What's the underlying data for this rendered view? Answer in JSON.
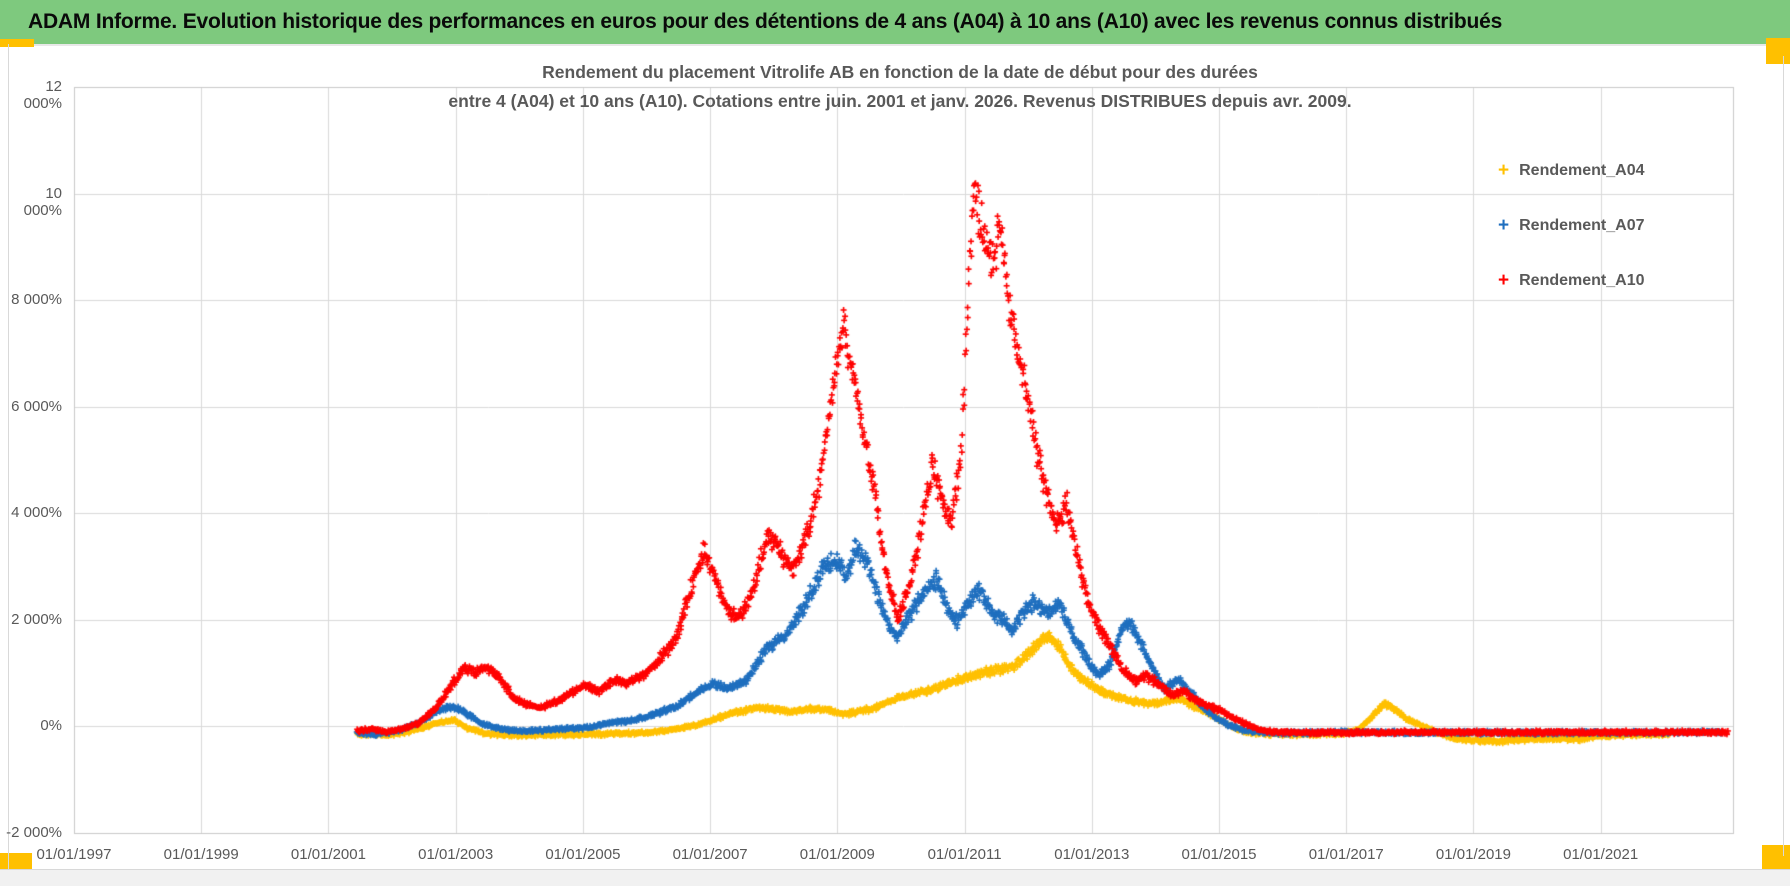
{
  "window": {
    "banner_title": "ADAM Informe. Evolution historique des performances en euros pour des détentions de 4 ans (A04) à 10 ans (A10) avec les revenus connus distribués"
  },
  "chart": {
    "title_line1": "Rendement du placement Vitrolife AB en fonction de la date de début pour des durées",
    "title_line2": "entre 4 (A04) et 10 ans (A10). Cotations entre juin. 2001 et janv. 2026. Revenus DISTRIBUES depuis avr. 2009."
  },
  "colors": {
    "banner_green": "#7ec97e",
    "accent_orange": "#ffc000",
    "gridline": "#d9d9d9",
    "plot_border": "#c9c9c9",
    "axis_text": "#595959",
    "series_a04": "#ffc000",
    "series_a07": "#1f6fbf",
    "series_a10": "#ff0000"
  },
  "chart_data": {
    "type": "scatter",
    "marker": "+",
    "title": "Rendement du placement Vitrolife AB en fonction de la date de début pour des durées entre 4 (A04) et 10 ans (A10). Cotations entre juin. 2001 et janv. 2026. Revenus DISTRIBUES depuis avr. 2009.",
    "x_axis": {
      "range_years": [
        1997.0,
        2023.08
      ],
      "tick_labels": [
        "01/01/1997",
        "01/01/1999",
        "01/01/2001",
        "01/01/2003",
        "01/01/2005",
        "01/01/2007",
        "01/01/2009",
        "01/01/2011",
        "01/01/2013",
        "01/01/2015",
        "01/01/2017",
        "01/01/2019",
        "01/01/2021"
      ],
      "tick_years": [
        1997,
        1999,
        2001,
        2003,
        2005,
        2007,
        2009,
        2011,
        2013,
        2015,
        2017,
        2019,
        2021
      ]
    },
    "y_axis": {
      "unit": "percent",
      "range": [
        -2000,
        12000
      ],
      "tick_labels": [
        "12 000%",
        "10 000%",
        "8 000%",
        "6 000%",
        "4 000%",
        "2 000%",
        "0%",
        "-2 000%"
      ],
      "tick_values": [
        12000,
        10000,
        8000,
        6000,
        4000,
        2000,
        0,
        -2000
      ],
      "grid": true
    },
    "legend_position": "right-inside",
    "series": [
      {
        "name": "Rendement_A04",
        "color": "#ffc000",
        "anchors": [
          [
            2001.45,
            -140
          ],
          [
            2001.9,
            -160
          ],
          [
            2002.3,
            -90
          ],
          [
            2002.7,
            60
          ],
          [
            2002.95,
            120
          ],
          [
            2003.2,
            -40
          ],
          [
            2003.5,
            -140
          ],
          [
            2004.0,
            -170
          ],
          [
            2004.5,
            -160
          ],
          [
            2005.0,
            -150
          ],
          [
            2005.5,
            -130
          ],
          [
            2006.0,
            -120
          ],
          [
            2006.4,
            -60
          ],
          [
            2006.8,
            30
          ],
          [
            2007.1,
            150
          ],
          [
            2007.4,
            260
          ],
          [
            2007.7,
            340
          ],
          [
            2008.0,
            330
          ],
          [
            2008.3,
            280
          ],
          [
            2008.6,
            330
          ],
          [
            2008.9,
            300
          ],
          [
            2009.1,
            230
          ],
          [
            2009.35,
            280
          ],
          [
            2009.6,
            350
          ],
          [
            2009.85,
            480
          ],
          [
            2010.1,
            580
          ],
          [
            2010.35,
            650
          ],
          [
            2010.6,
            750
          ],
          [
            2010.85,
            850
          ],
          [
            2011.1,
            950
          ],
          [
            2011.35,
            1020
          ],
          [
            2011.6,
            1080
          ],
          [
            2011.8,
            1150
          ],
          [
            2012.0,
            1350
          ],
          [
            2012.2,
            1600
          ],
          [
            2012.35,
            1680
          ],
          [
            2012.5,
            1450
          ],
          [
            2012.65,
            1150
          ],
          [
            2012.85,
            900
          ],
          [
            2013.05,
            720
          ],
          [
            2013.25,
            600
          ],
          [
            2013.5,
            520
          ],
          [
            2013.75,
            450
          ],
          [
            2014.0,
            430
          ],
          [
            2014.2,
            480
          ],
          [
            2014.4,
            520
          ],
          [
            2014.6,
            380
          ],
          [
            2014.8,
            280
          ],
          [
            2015.0,
            130
          ],
          [
            2015.2,
            0
          ],
          [
            2015.45,
            -110
          ],
          [
            2015.8,
            -150
          ],
          [
            2016.3,
            -150
          ],
          [
            2016.9,
            -140
          ],
          [
            2017.2,
            -60
          ],
          [
            2017.45,
            250
          ],
          [
            2017.6,
            430
          ],
          [
            2017.75,
            330
          ],
          [
            2017.95,
            140
          ],
          [
            2018.2,
            20
          ],
          [
            2018.45,
            -120
          ],
          [
            2018.7,
            -220
          ],
          [
            2019.0,
            -260
          ],
          [
            2019.4,
            -280
          ],
          [
            2019.8,
            -240
          ],
          [
            2020.2,
            -230
          ],
          [
            2020.6,
            -250
          ],
          [
            2021.0,
            -180
          ],
          [
            2021.5,
            -150
          ],
          [
            2022.1,
            -140
          ]
        ]
      },
      {
        "name": "Rendement_A07",
        "color": "#1f6fbf",
        "anchors": [
          [
            2001.45,
            -130
          ],
          [
            2001.8,
            -140
          ],
          [
            2002.1,
            -80
          ],
          [
            2002.4,
            60
          ],
          [
            2002.7,
            280
          ],
          [
            2002.95,
            380
          ],
          [
            2003.15,
            260
          ],
          [
            2003.4,
            60
          ],
          [
            2003.7,
            -50
          ],
          [
            2004.0,
            -90
          ],
          [
            2004.5,
            -60
          ],
          [
            2005.0,
            -30
          ],
          [
            2005.4,
            60
          ],
          [
            2005.8,
            120
          ],
          [
            2006.2,
            260
          ],
          [
            2006.5,
            400
          ],
          [
            2006.8,
            650
          ],
          [
            2007.05,
            800
          ],
          [
            2007.3,
            700
          ],
          [
            2007.6,
            900
          ],
          [
            2007.9,
            1500
          ],
          [
            2008.2,
            1700
          ],
          [
            2008.5,
            2300
          ],
          [
            2008.8,
            3000
          ],
          [
            2009.0,
            3100
          ],
          [
            2009.15,
            2800
          ],
          [
            2009.3,
            3400
          ],
          [
            2009.45,
            3100
          ],
          [
            2009.6,
            2600
          ],
          [
            2009.8,
            1900
          ],
          [
            2009.95,
            1700
          ],
          [
            2010.15,
            2100
          ],
          [
            2010.35,
            2500
          ],
          [
            2010.55,
            2750
          ],
          [
            2010.75,
            2200
          ],
          [
            2010.9,
            1950
          ],
          [
            2011.1,
            2400
          ],
          [
            2011.25,
            2550
          ],
          [
            2011.4,
            2200
          ],
          [
            2011.55,
            2050
          ],
          [
            2011.75,
            1800
          ],
          [
            2011.95,
            2200
          ],
          [
            2012.1,
            2350
          ],
          [
            2012.3,
            2100
          ],
          [
            2012.5,
            2300
          ],
          [
            2012.7,
            1700
          ],
          [
            2012.9,
            1300
          ],
          [
            2013.1,
            950
          ],
          [
            2013.3,
            1200
          ],
          [
            2013.5,
            1900
          ],
          [
            2013.6,
            1950
          ],
          [
            2013.75,
            1600
          ],
          [
            2013.95,
            1100
          ],
          [
            2014.15,
            700
          ],
          [
            2014.35,
            900
          ],
          [
            2014.55,
            650
          ],
          [
            2014.75,
            350
          ],
          [
            2014.95,
            150
          ],
          [
            2015.15,
            30
          ],
          [
            2015.4,
            -80
          ],
          [
            2015.8,
            -120
          ],
          [
            2017.0,
            -110
          ],
          [
            2019.0,
            -120
          ],
          [
            2021.0,
            -115
          ],
          [
            2022.9,
            -110
          ]
        ]
      },
      {
        "name": "Rendement_A10",
        "color": "#ff0000",
        "anchors": [
          [
            2001.45,
            -80
          ],
          [
            2001.7,
            -50
          ],
          [
            2001.95,
            -110
          ],
          [
            2002.2,
            -30
          ],
          [
            2002.45,
            80
          ],
          [
            2002.7,
            350
          ],
          [
            2002.95,
            800
          ],
          [
            2003.15,
            1100
          ],
          [
            2003.3,
            1000
          ],
          [
            2003.5,
            1120
          ],
          [
            2003.7,
            900
          ],
          [
            2003.9,
            550
          ],
          [
            2004.1,
            420
          ],
          [
            2004.35,
            350
          ],
          [
            2004.6,
            480
          ],
          [
            2004.85,
            650
          ],
          [
            2005.05,
            780
          ],
          [
            2005.25,
            650
          ],
          [
            2005.5,
            880
          ],
          [
            2005.7,
            820
          ],
          [
            2005.95,
            950
          ],
          [
            2006.2,
            1250
          ],
          [
            2006.45,
            1600
          ],
          [
            2006.7,
            2600
          ],
          [
            2006.9,
            3300
          ],
          [
            2007.05,
            2900
          ],
          [
            2007.25,
            2200
          ],
          [
            2007.45,
            2050
          ],
          [
            2007.65,
            2450
          ],
          [
            2007.9,
            3600
          ],
          [
            2008.05,
            3400
          ],
          [
            2008.3,
            2900
          ],
          [
            2008.55,
            3700
          ],
          [
            2008.75,
            4800
          ],
          [
            2008.95,
            6500
          ],
          [
            2009.1,
            7600
          ],
          [
            2009.3,
            6300
          ],
          [
            2009.45,
            5300
          ],
          [
            2009.6,
            4300
          ],
          [
            2009.75,
            3000
          ],
          [
            2009.95,
            2050
          ],
          [
            2010.1,
            2500
          ],
          [
            2010.3,
            3600
          ],
          [
            2010.5,
            4900
          ],
          [
            2010.65,
            4200
          ],
          [
            2010.8,
            3800
          ],
          [
            2010.95,
            5200
          ],
          [
            2011.05,
            8000
          ],
          [
            2011.15,
            10100
          ],
          [
            2011.3,
            9200
          ],
          [
            2011.45,
            8500
          ],
          [
            2011.55,
            9400
          ],
          [
            2011.7,
            8000
          ],
          [
            2011.85,
            7000
          ],
          [
            2012.0,
            6100
          ],
          [
            2012.15,
            5000
          ],
          [
            2012.3,
            4300
          ],
          [
            2012.45,
            3800
          ],
          [
            2012.6,
            4200
          ],
          [
            2012.75,
            3300
          ],
          [
            2012.95,
            2300
          ],
          [
            2013.1,
            1900
          ],
          [
            2013.25,
            1600
          ],
          [
            2013.45,
            1150
          ],
          [
            2013.65,
            850
          ],
          [
            2013.85,
            950
          ],
          [
            2014.05,
            800
          ],
          [
            2014.25,
            600
          ],
          [
            2014.45,
            650
          ],
          [
            2014.65,
            480
          ],
          [
            2014.85,
            380
          ],
          [
            2015.05,
            280
          ],
          [
            2015.25,
            150
          ],
          [
            2015.45,
            30
          ],
          [
            2015.65,
            -60
          ],
          [
            2015.9,
            -110
          ],
          [
            2016.5,
            -120
          ],
          [
            2018.0,
            -110
          ],
          [
            2020.0,
            -115
          ],
          [
            2023.0,
            -110
          ]
        ]
      }
    ]
  }
}
